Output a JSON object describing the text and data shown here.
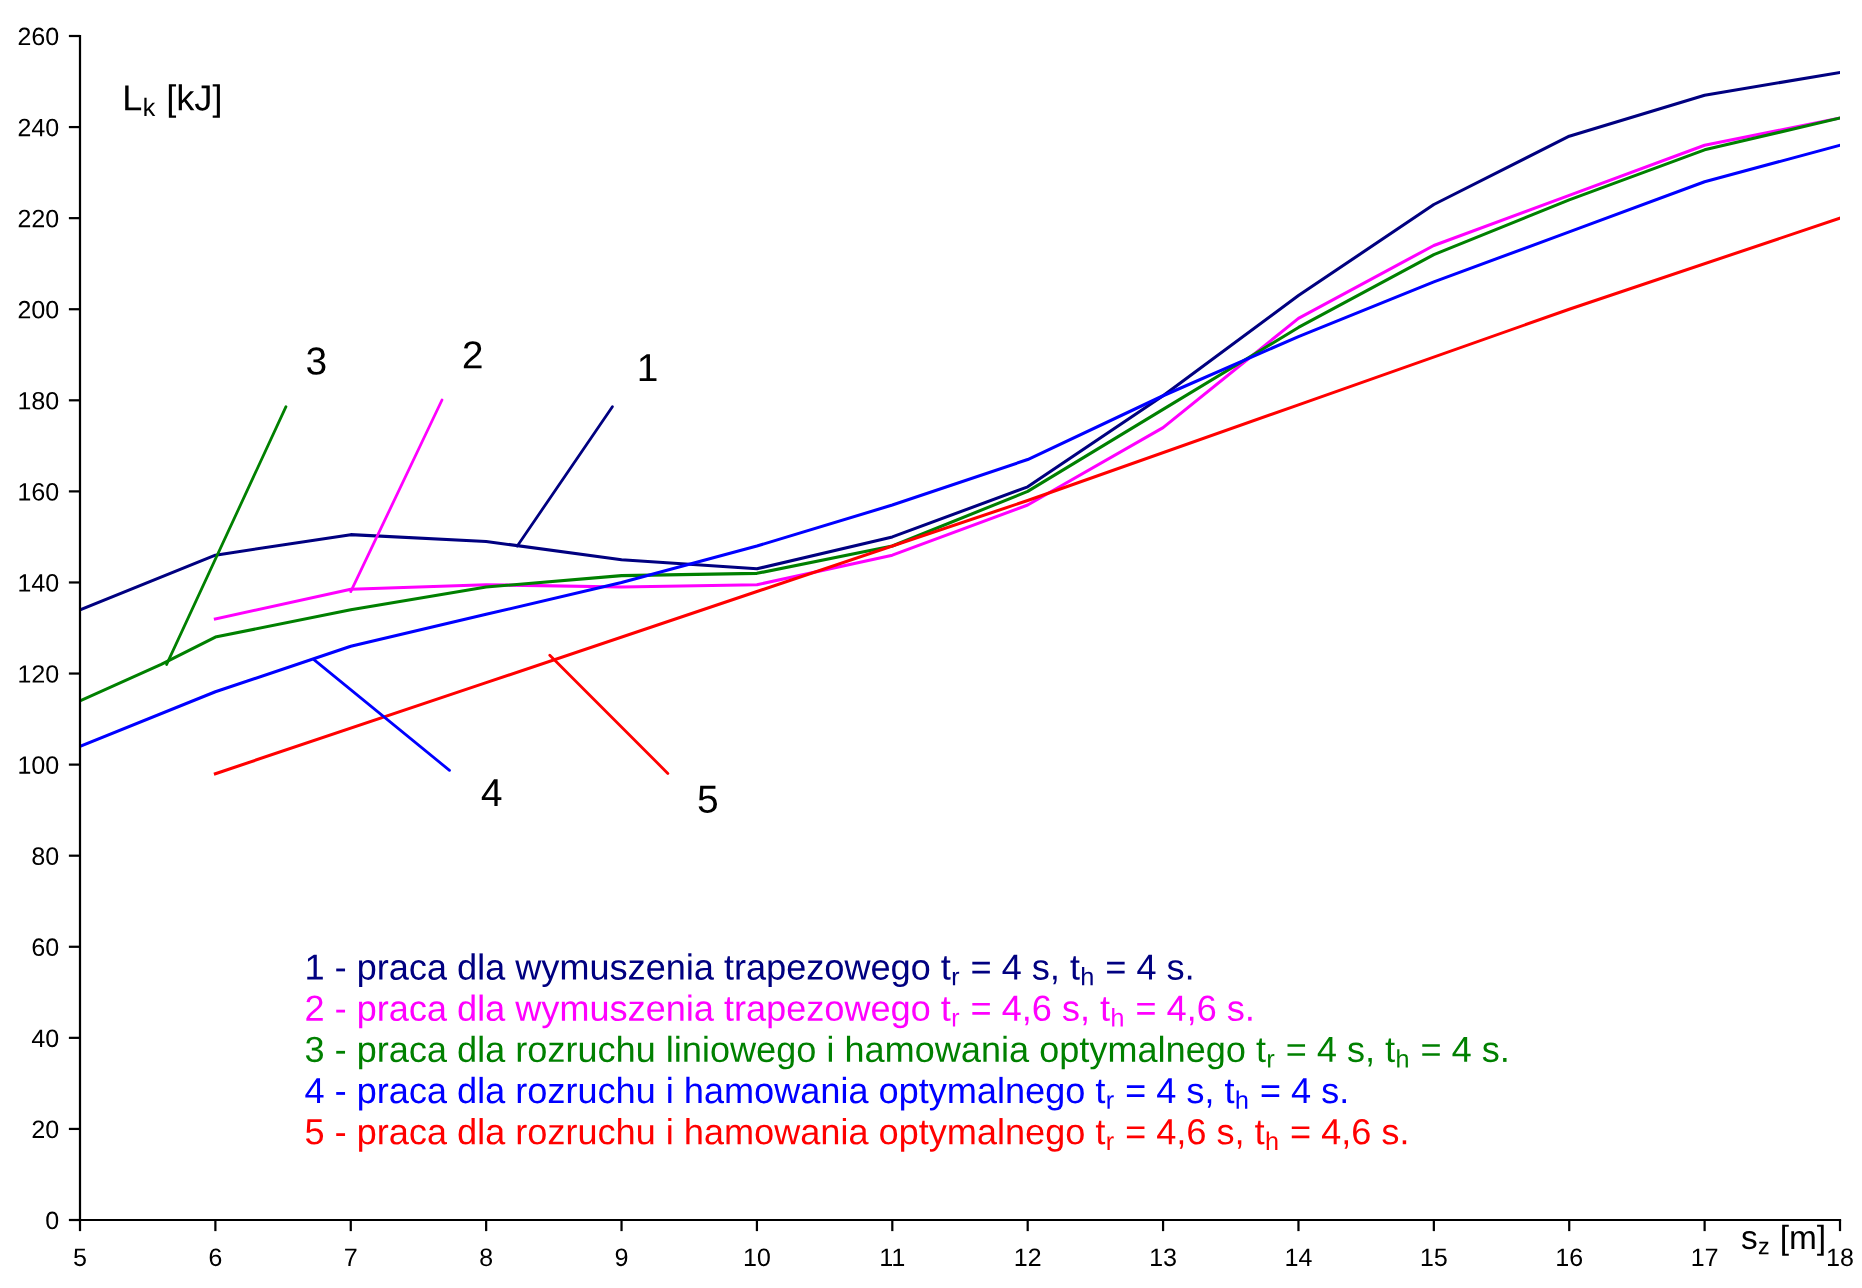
{
  "chart_data": {
    "type": "line",
    "xlabel": "s$_{z}$ [m]",
    "ylabel": "L$_{k}$ [kJ]",
    "xlim": [
      5,
      18
    ],
    "ylim": [
      0,
      260
    ],
    "xticks": [
      5,
      6,
      7,
      8,
      9,
      10,
      11,
      12,
      13,
      14,
      15,
      16,
      17,
      18
    ],
    "yticks": [
      0,
      20,
      40,
      60,
      80,
      100,
      120,
      140,
      160,
      180,
      200,
      220,
      240,
      260
    ],
    "grid": false,
    "legend": "bottom",
    "marker": "none",
    "line_style": "solid",
    "series": [
      {
        "name": "1 - praca dla wymuszenia trapezowego t$_{r}$ = 4 s, t$_{h}$ = 4 s.",
        "color": "#000080",
        "x": [
          5,
          6,
          7,
          8,
          9,
          10,
          11,
          12,
          13,
          14,
          15,
          16,
          17,
          18
        ],
        "values": [
          134,
          146,
          150.5,
          149,
          145,
          143,
          150,
          161,
          181,
          203,
          223,
          238,
          247,
          252
        ]
      },
      {
        "name": "2 - praca dla wymuszenia trapezowego t$_{r}$ = 4,6 s, t$_{h}$ = 4,6 s.",
        "color": "#ff00ff",
        "x": [
          6,
          7,
          8,
          9,
          10,
          11,
          12,
          13,
          14,
          15,
          16,
          17,
          18
        ],
        "values": [
          132,
          138.5,
          139.5,
          139,
          139.5,
          146,
          157,
          174,
          198,
          214,
          225,
          236,
          242
        ]
      },
      {
        "name": "3 - praca dla rozruchu liniowego i hamowania optymalnego t$_{r}$ = 4 s, t$_{h}$ = 4 s.",
        "color": "#008000",
        "x": [
          5,
          5.6,
          6,
          7,
          8,
          9,
          10,
          11,
          12,
          13,
          14,
          15,
          16,
          17,
          18
        ],
        "values": [
          114,
          122,
          128,
          134,
          139,
          141.5,
          142,
          148,
          160,
          178,
          196,
          212,
          224,
          235,
          242
        ]
      },
      {
        "name": "4 - praca dla rozruchu i hamowania optymalnego t$_{r}$ = 4 s, t$_{h}$ = 4 s.",
        "color": "#0000ff",
        "x": [
          5,
          6,
          7,
          8,
          9,
          10,
          11,
          12,
          13,
          14,
          15,
          16,
          17,
          18
        ],
        "values": [
          104,
          116,
          126,
          133,
          140,
          148,
          157,
          167,
          181,
          194,
          206,
          217,
          228,
          236
        ]
      },
      {
        "name": "5 - praca dla rozruchu i hamowania optymalnego t$_{r}$ = 4,6 s, t$_{h}$ = 4,6 s.",
        "color": "#ff0000",
        "x": [
          6,
          8,
          10,
          12,
          14,
          16,
          18
        ],
        "values": [
          98,
          118,
          138,
          158,
          179,
          200,
          220
        ]
      }
    ],
    "annotations": [
      {
        "text": "1",
        "x": 8.23,
        "y": 148
      },
      {
        "text": "2",
        "x": 7.0,
        "y": 138
      },
      {
        "text": "3",
        "x": 5.64,
        "y": 122
      },
      {
        "text": "4",
        "x": 6.73,
        "y": 123
      },
      {
        "text": "5",
        "x": 8.47,
        "y": 124
      }
    ]
  }
}
